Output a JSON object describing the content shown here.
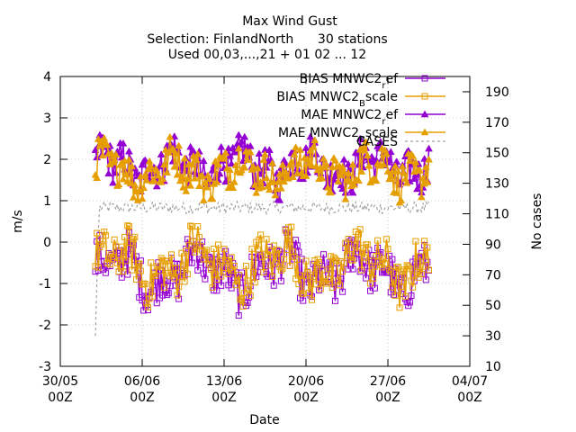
{
  "chart_data": {
    "type": "line",
    "title": "Max Wind Gust",
    "subtitle_lines": [
      "Selection: FinlandNorth      30 stations",
      "Used 00,03,...,21 + 01 02 ... 12"
    ],
    "xlabel": "Date",
    "ylabel": "m/s",
    "y2label": "No cases",
    "xlim": [
      "2024-05-30T00:00",
      "2024-07-04T00:00"
    ],
    "ylim": [
      -3,
      4
    ],
    "y2lim": [
      10,
      200
    ],
    "x_ticks": [
      {
        "value": "2024-05-30T00:00",
        "line1": "30/05",
        "line2": "00Z"
      },
      {
        "value": "2024-06-06T00:00",
        "line1": "06/06",
        "line2": "00Z"
      },
      {
        "value": "2024-06-13T00:00",
        "line1": "13/06",
        "line2": "00Z"
      },
      {
        "value": "2024-06-20T00:00",
        "line1": "20/06",
        "line2": "00Z"
      },
      {
        "value": "2024-06-27T00:00",
        "line1": "27/06",
        "line2": "00Z"
      },
      {
        "value": "2024-07-04T00:00",
        "line1": "04/07",
        "line2": "00Z"
      }
    ],
    "y_ticks": [
      -3,
      -2,
      -1,
      0,
      1,
      2,
      3,
      4
    ],
    "y2_ticks": [
      10,
      30,
      50,
      70,
      90,
      110,
      130,
      150,
      170,
      190
    ],
    "grid": true,
    "legend_position": "top-right",
    "series": [
      {
        "label_main": "BIAS MNWC2",
        "label_sub": "r",
        "label_tail": "ef",
        "axis": "y",
        "color": "#9400d3",
        "marker": "square",
        "kind": "bias",
        "offset": -0.25
      },
      {
        "label_main": "BIAS MNWC2",
        "label_sub": "B",
        "label_tail": "scale",
        "axis": "y",
        "color": "#e69f00",
        "marker": "square",
        "kind": "bias",
        "offset": -0.1
      },
      {
        "label_main": "MAE MNWC2",
        "label_sub": "r",
        "label_tail": "ef",
        "axis": "y",
        "color": "#9400d3",
        "marker": "triangle",
        "kind": "mae",
        "offset": 0.1
      },
      {
        "label_main": "MAE MNWC2",
        "label_sub": "B",
        "label_tail": "scale",
        "axis": "y",
        "color": "#e69f00",
        "marker": "triangle",
        "kind": "mae",
        "offset": 0.0
      },
      {
        "label_main": "CASES",
        "label_sub": "",
        "label_tail": "",
        "axis": "y2",
        "color": "#a0a0a0",
        "marker": "none",
        "kind": "cases",
        "offset": 0
      }
    ],
    "data_range": [
      "2024-06-02T00:00",
      "2024-06-30T12:00"
    ],
    "data_step_hours": 3,
    "sample_values": {
      "bias_typical": [
        -1.3,
        0.3
      ],
      "mae_typical": [
        1.2,
        2.7
      ],
      "cases_typical": [
        110,
        120
      ],
      "cases_start": 30
    }
  }
}
